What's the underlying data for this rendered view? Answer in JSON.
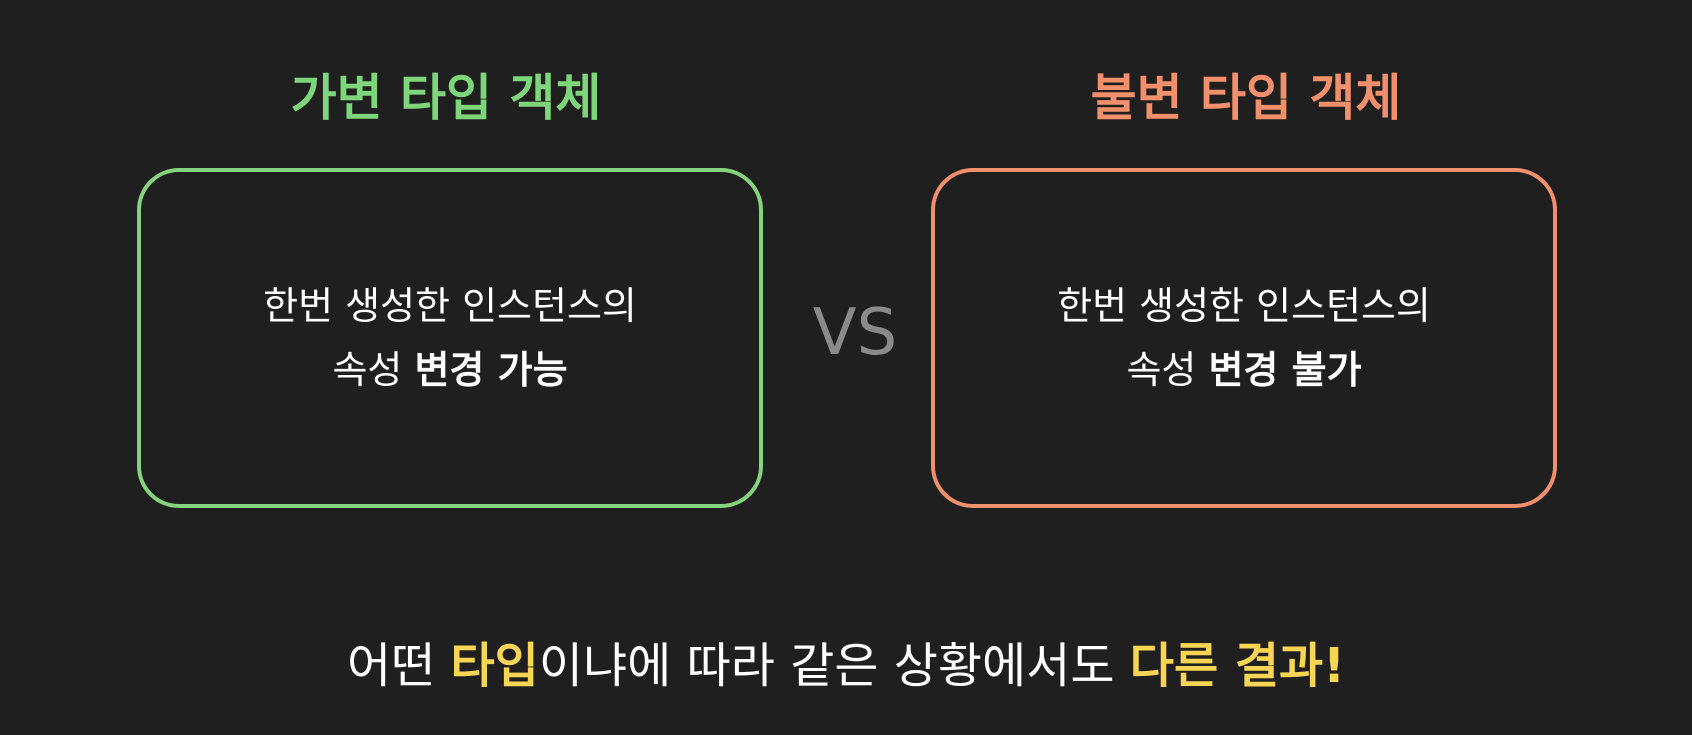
{
  "left": {
    "title": "가변 타입 객체",
    "line1": "한번 생성한 인스턴스의",
    "line2_plain": "속성 ",
    "line2_bold": "변경 가능",
    "accent_color": "#7ed67a"
  },
  "vs_label": "VS",
  "right": {
    "title": "불변 타입 객체",
    "line1": "한번 생성한 인스턴스의",
    "line2_plain": "속성 ",
    "line2_bold": "변경 불가",
    "accent_color": "#f3906c"
  },
  "bottom": {
    "part1": "어떤 ",
    "highlight1": "타입",
    "part2": "이냐에 따라 같은 상황에서도 ",
    "highlight2": "다른 결과!",
    "highlight_color": "#f8d653"
  }
}
